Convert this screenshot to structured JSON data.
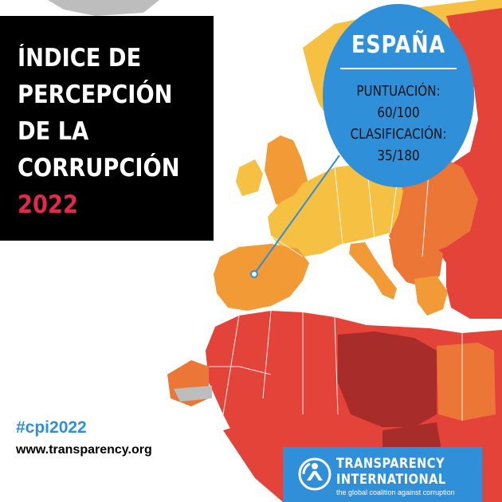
{
  "title": {
    "lines": [
      "ÍNDICE DE",
      "PERCEPCIÓN",
      "DE LA",
      "CORRUPCIÓN"
    ],
    "year": "2022"
  },
  "callout": {
    "country": "ESPAÑA",
    "score_label": "PUNTUACIÓN:",
    "score_value": "60/100",
    "rank_label": "CLASIFICACIÓN:",
    "rank_value": "35/180"
  },
  "footer": {
    "hashtag": "#cpi2022",
    "website": "www.transparency.org"
  },
  "logo": {
    "line1": "TRANSPARENCY",
    "line2": "INTERNATIONAL",
    "tagline": "the global coalition against corruption"
  },
  "colors": {
    "title_bg": "#000000",
    "year_accent": "#e4284a",
    "brand_blue": "#2f8fd8",
    "sea": "#ffffff",
    "score_high": "#f6c042",
    "score_mid_high": "#f29a35",
    "score_mid": "#ec7636",
    "score_low": "#e4433a",
    "score_very_low": "#a82c2a",
    "no_data": "#bdbdbd"
  },
  "icons": [
    "map-pin-dot-icon",
    "transparency-emblem-icon"
  ]
}
